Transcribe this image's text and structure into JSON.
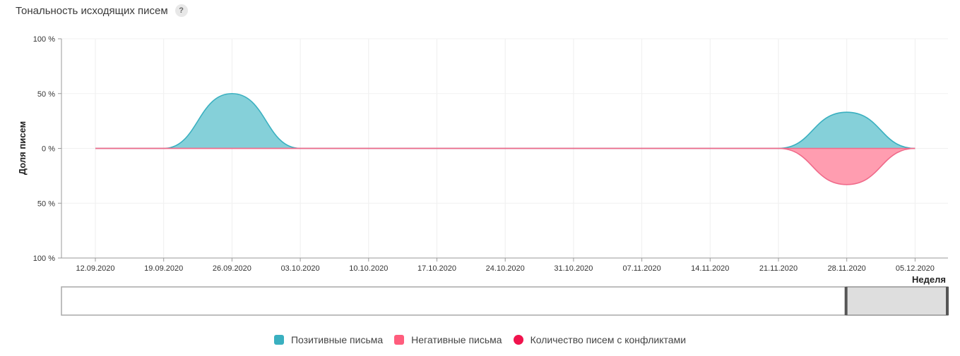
{
  "header": {
    "title": "Тональность исходящих писем",
    "help_label": "?"
  },
  "chart_data": {
    "type": "area",
    "title": "Тональность исходящих писем",
    "ylabel": "Доля писем",
    "xlabel": "Неделя",
    "categories": [
      "12.09.2020",
      "19.09.2020",
      "26.09.2020",
      "03.10.2020",
      "10.10.2020",
      "17.10.2020",
      "24.10.2020",
      "31.10.2020",
      "07.11.2020",
      "14.11.2020",
      "21.11.2020",
      "28.11.2020",
      "05.12.2020"
    ],
    "y_ticks": [
      "100 %",
      "50 %",
      "0 %",
      "50 %",
      "100 %"
    ],
    "ylim": [
      -100,
      100
    ],
    "series": [
      {
        "name": "Позитивные письма",
        "values": [
          0,
          0,
          50,
          0,
          0,
          0,
          0,
          0,
          0,
          0,
          0,
          33,
          0
        ],
        "color": "#3ab0c0",
        "fill": "#85d0d9"
      },
      {
        "name": "Негативные письма",
        "values": [
          0,
          0,
          0,
          0,
          0,
          0,
          0,
          0,
          0,
          0,
          0,
          -33,
          0
        ],
        "color": "#f06a8a",
        "fill": "#ff9db0"
      },
      {
        "name": "Количество писем с конфликтами",
        "values": [
          0,
          0,
          0,
          0,
          0,
          0,
          0,
          0,
          0,
          0,
          0,
          0,
          0
        ],
        "color": "#f0134d"
      }
    ],
    "grid": true,
    "legend_position": "bottom"
  },
  "legend": [
    {
      "label": "Позитивные письма",
      "color": "#3ab0c0",
      "shape": "square"
    },
    {
      "label": "Негативные письма",
      "color": "#ff5d7d",
      "shape": "square"
    },
    {
      "label": "Количество писем с конфликтами",
      "color": "#f0134d",
      "shape": "circle"
    }
  ],
  "navigator": {
    "selected_range": [
      0.885,
      1.0
    ]
  }
}
